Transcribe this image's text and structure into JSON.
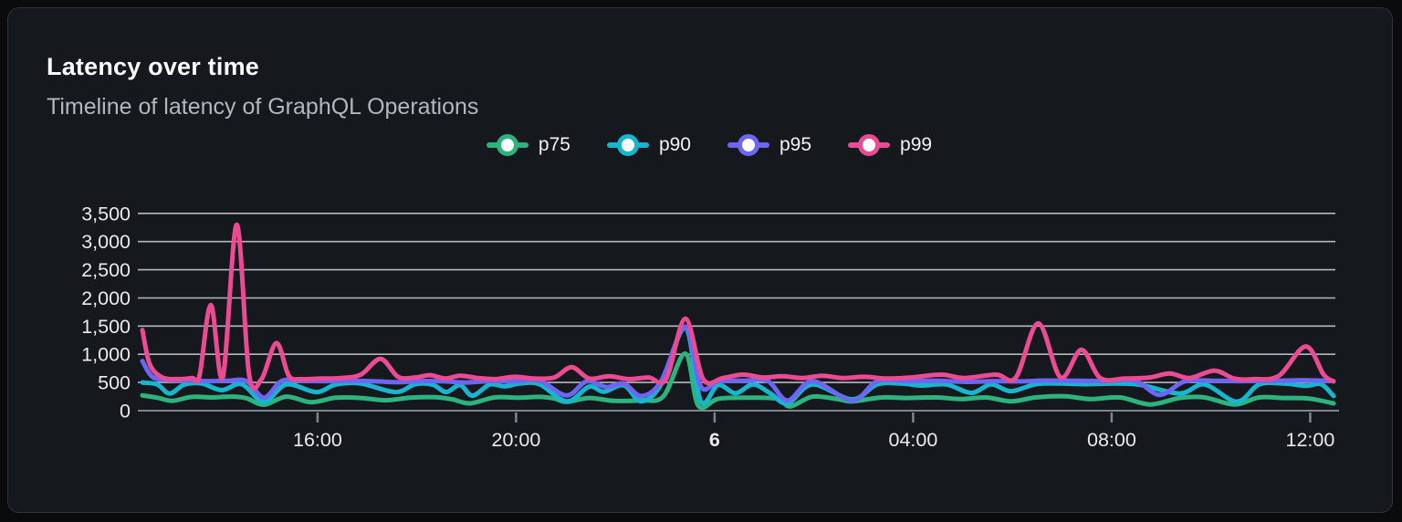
{
  "card": {
    "title": "Latency over time",
    "subtitle": "Timeline of latency of GraphQL Operations"
  },
  "colors": {
    "page_background": "#0a0b0d",
    "card_background": "#15181d",
    "card_border": "#2e3237",
    "gridline": "#d2d5da",
    "axis_line": "#7f858d",
    "tick_label": "#e9ebee",
    "title_text": "#fafbfc",
    "subtitle_text": "#b3b7be",
    "p75": "#2cb37e",
    "p90": "#17b5ce",
    "p95": "#6d66f2",
    "p99": "#eb4b93"
  },
  "chart_data": {
    "type": "line",
    "title": "Latency over time",
    "subtitle": "Timeline of latency of GraphQL Operations",
    "legend_position": "top-center",
    "grid": "horizontal",
    "x_axis": {
      "unit": "time of day (24h window)",
      "range": [
        0,
        24
      ],
      "ticks": [
        {
          "pos": 3.53,
          "label": "16:00",
          "bold": false
        },
        {
          "pos": 7.53,
          "label": "20:00",
          "bold": false
        },
        {
          "pos": 11.53,
          "label": "6",
          "bold": true
        },
        {
          "pos": 15.53,
          "label": "04:00",
          "bold": false
        },
        {
          "pos": 19.53,
          "label": "08:00",
          "bold": false
        },
        {
          "pos": 23.53,
          "label": "12:00",
          "bold": false
        }
      ]
    },
    "y_axis": {
      "range": [
        0,
        3500
      ],
      "tick_step": 500,
      "tick_labels": [
        "0",
        "500",
        "1,000",
        "1,500",
        "2,000",
        "2,500",
        "3,000",
        "3,500"
      ]
    },
    "series": [
      {
        "name": "p75",
        "color": "#2cb37e",
        "points": [
          [
            0,
            270
          ],
          [
            0.3,
            230
          ],
          [
            0.6,
            175
          ],
          [
            1.0,
            245
          ],
          [
            1.4,
            235
          ],
          [
            1.8,
            250
          ],
          [
            2.1,
            220
          ],
          [
            2.45,
            105
          ],
          [
            2.9,
            250
          ],
          [
            3.4,
            150
          ],
          [
            3.9,
            230
          ],
          [
            4.4,
            225
          ],
          [
            4.9,
            185
          ],
          [
            5.4,
            230
          ],
          [
            5.9,
            240
          ],
          [
            6.25,
            200
          ],
          [
            6.6,
            130
          ],
          [
            7.1,
            235
          ],
          [
            7.6,
            230
          ],
          [
            8.0,
            245
          ],
          [
            8.3,
            215
          ],
          [
            8.55,
            155
          ],
          [
            9.0,
            225
          ],
          [
            9.5,
            175
          ],
          [
            10.05,
            185
          ],
          [
            10.5,
            255
          ],
          [
            10.94,
            1010
          ],
          [
            11.2,
            90
          ],
          [
            11.6,
            210
          ],
          [
            12.2,
            230
          ],
          [
            12.8,
            210
          ],
          [
            13.05,
            75
          ],
          [
            13.5,
            250
          ],
          [
            14.0,
            205
          ],
          [
            14.3,
            165
          ],
          [
            14.9,
            235
          ],
          [
            15.4,
            225
          ],
          [
            16.0,
            235
          ],
          [
            16.5,
            205
          ],
          [
            17.0,
            235
          ],
          [
            17.5,
            165
          ],
          [
            18.0,
            235
          ],
          [
            18.6,
            255
          ],
          [
            19.1,
            205
          ],
          [
            19.7,
            235
          ],
          [
            20.3,
            110
          ],
          [
            20.9,
            225
          ],
          [
            21.4,
            235
          ],
          [
            22.0,
            110
          ],
          [
            22.5,
            235
          ],
          [
            23.0,
            225
          ],
          [
            23.5,
            215
          ],
          [
            24,
            130
          ]
        ]
      },
      {
        "name": "p90",
        "color": "#17b5ce",
        "points": [
          [
            0,
            500
          ],
          [
            0.3,
            465
          ],
          [
            0.55,
            305
          ],
          [
            0.85,
            465
          ],
          [
            1.2,
            480
          ],
          [
            1.6,
            365
          ],
          [
            2.0,
            470
          ],
          [
            2.45,
            155
          ],
          [
            2.9,
            465
          ],
          [
            3.5,
            330
          ],
          [
            3.9,
            465
          ],
          [
            4.4,
            480
          ],
          [
            5.1,
            330
          ],
          [
            5.5,
            470
          ],
          [
            5.85,
            460
          ],
          [
            6.12,
            330
          ],
          [
            6.4,
            455
          ],
          [
            6.65,
            265
          ],
          [
            7.0,
            465
          ],
          [
            7.3,
            430
          ],
          [
            7.6,
            480
          ],
          [
            8.0,
            470
          ],
          [
            8.55,
            165
          ],
          [
            9.0,
            425
          ],
          [
            9.3,
            335
          ],
          [
            9.7,
            450
          ],
          [
            10.05,
            165
          ],
          [
            10.45,
            465
          ],
          [
            10.94,
            1470
          ],
          [
            11.25,
            170
          ],
          [
            11.6,
            455
          ],
          [
            11.95,
            310
          ],
          [
            12.3,
            465
          ],
          [
            12.65,
            310
          ],
          [
            13.0,
            130
          ],
          [
            13.5,
            465
          ],
          [
            14.3,
            200
          ],
          [
            14.8,
            465
          ],
          [
            15.3,
            480
          ],
          [
            15.7,
            445
          ],
          [
            16.2,
            465
          ],
          [
            16.7,
            315
          ],
          [
            17.1,
            465
          ],
          [
            17.5,
            345
          ],
          [
            18.0,
            470
          ],
          [
            18.5,
            480
          ],
          [
            19.0,
            470
          ],
          [
            19.6,
            480
          ],
          [
            20.1,
            460
          ],
          [
            20.9,
            305
          ],
          [
            21.4,
            465
          ],
          [
            22.05,
            160
          ],
          [
            22.5,
            465
          ],
          [
            23.0,
            480
          ],
          [
            23.45,
            440
          ],
          [
            23.75,
            470
          ],
          [
            24,
            260
          ]
        ]
      },
      {
        "name": "p95",
        "color": "#6d66f2",
        "points": [
          [
            0,
            880
          ],
          [
            0.2,
            600
          ],
          [
            0.5,
            545
          ],
          [
            0.9,
            535
          ],
          [
            1.3,
            525
          ],
          [
            1.7,
            530
          ],
          [
            2.1,
            525
          ],
          [
            2.45,
            230
          ],
          [
            2.8,
            525
          ],
          [
            3.2,
            530
          ],
          [
            3.7,
            525
          ],
          [
            4.2,
            530
          ],
          [
            4.7,
            520
          ],
          [
            5.15,
            505
          ],
          [
            5.6,
            525
          ],
          [
            6.1,
            520
          ],
          [
            6.5,
            500
          ],
          [
            7.0,
            525
          ],
          [
            7.5,
            520
          ],
          [
            8.0,
            530
          ],
          [
            8.55,
            270
          ],
          [
            8.95,
            520
          ],
          [
            9.35,
            420
          ],
          [
            9.7,
            480
          ],
          [
            10.05,
            260
          ],
          [
            10.45,
            520
          ],
          [
            10.94,
            1490
          ],
          [
            11.25,
            430
          ],
          [
            11.6,
            520
          ],
          [
            12.1,
            530
          ],
          [
            12.6,
            525
          ],
          [
            13.0,
            180
          ],
          [
            13.5,
            525
          ],
          [
            14.3,
            180
          ],
          [
            14.8,
            520
          ],
          [
            15.4,
            525
          ],
          [
            16.0,
            530
          ],
          [
            16.6,
            510
          ],
          [
            17.2,
            525
          ],
          [
            17.7,
            520
          ],
          [
            18.2,
            535
          ],
          [
            18.8,
            530
          ],
          [
            19.4,
            525
          ],
          [
            20.0,
            530
          ],
          [
            20.5,
            280
          ],
          [
            21.0,
            520
          ],
          [
            21.6,
            530
          ],
          [
            22.2,
            525
          ],
          [
            22.8,
            530
          ],
          [
            23.4,
            540
          ],
          [
            24,
            525
          ]
        ]
      },
      {
        "name": "p99",
        "color": "#eb4b93",
        "points": [
          [
            0,
            1430
          ],
          [
            0.15,
            820
          ],
          [
            0.4,
            590
          ],
          [
            0.7,
            560
          ],
          [
            1.0,
            580
          ],
          [
            1.15,
            620
          ],
          [
            1.38,
            1875
          ],
          [
            1.62,
            590
          ],
          [
            1.9,
            3300
          ],
          [
            2.15,
            640
          ],
          [
            2.4,
            560
          ],
          [
            2.7,
            1200
          ],
          [
            2.95,
            620
          ],
          [
            3.2,
            560
          ],
          [
            3.6,
            570
          ],
          [
            4.0,
            580
          ],
          [
            4.4,
            640
          ],
          [
            4.8,
            920
          ],
          [
            5.15,
            600
          ],
          [
            5.5,
            590
          ],
          [
            5.8,
            630
          ],
          [
            6.1,
            570
          ],
          [
            6.4,
            620
          ],
          [
            6.75,
            580
          ],
          [
            7.1,
            560
          ],
          [
            7.5,
            600
          ],
          [
            7.9,
            570
          ],
          [
            8.3,
            590
          ],
          [
            8.65,
            770
          ],
          [
            9.0,
            570
          ],
          [
            9.4,
            610
          ],
          [
            9.8,
            560
          ],
          [
            10.2,
            590
          ],
          [
            10.55,
            560
          ],
          [
            10.94,
            1630
          ],
          [
            11.3,
            560
          ],
          [
            11.7,
            580
          ],
          [
            12.1,
            640
          ],
          [
            12.5,
            590
          ],
          [
            12.9,
            610
          ],
          [
            13.3,
            580
          ],
          [
            13.7,
            620
          ],
          [
            14.1,
            580
          ],
          [
            14.55,
            600
          ],
          [
            15.0,
            570
          ],
          [
            15.5,
            590
          ],
          [
            16.1,
            640
          ],
          [
            16.55,
            580
          ],
          [
            17.2,
            640
          ],
          [
            17.6,
            590
          ],
          [
            18.05,
            1550
          ],
          [
            18.5,
            590
          ],
          [
            18.92,
            1080
          ],
          [
            19.3,
            580
          ],
          [
            19.8,
            570
          ],
          [
            20.3,
            590
          ],
          [
            20.7,
            660
          ],
          [
            21.1,
            580
          ],
          [
            21.6,
            710
          ],
          [
            22.0,
            570
          ],
          [
            22.4,
            560
          ],
          [
            22.9,
            620
          ],
          [
            23.44,
            1140
          ],
          [
            23.8,
            640
          ],
          [
            24,
            520
          ]
        ]
      }
    ]
  }
}
